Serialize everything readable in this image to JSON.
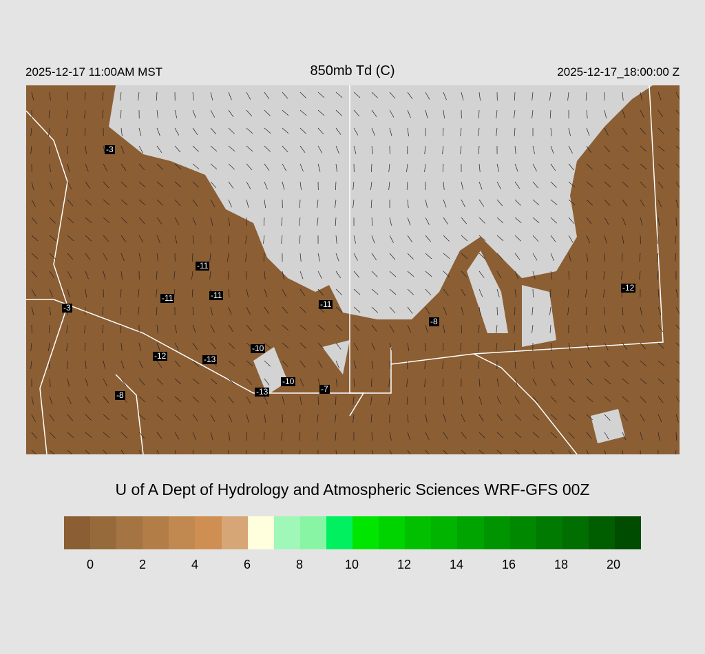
{
  "header": {
    "local_time": "2025-12-17 11:00AM MST",
    "title": "850mb Td (C)",
    "valid_time": "2025-12-17_18:00:00 Z"
  },
  "map": {
    "land_color_dry": "#8B5E34",
    "background_color": "#d3d3d3",
    "boundary_color": "#ffffff",
    "station_values": [
      "-3",
      "-3",
      "-11",
      "-11",
      "-11",
      "-11",
      "-12",
      "-8",
      "-10",
      "-12",
      "-13",
      "-10",
      "-7",
      "-13",
      "-8"
    ]
  },
  "credit": "U of A Dept of Hydrology and Atmospheric Sciences WRF-GFS 00Z",
  "colorbar": {
    "colors": [
      "#8B5E34",
      "#976A3B",
      "#A57443",
      "#B27D47",
      "#C1884F",
      "#CF8F52",
      "#D7A677",
      "#FFFFDD",
      "#A0F8B8",
      "#88F5A5",
      "#00F060",
      "#00E600",
      "#00D400",
      "#00C000",
      "#00B400",
      "#00A400",
      "#009400",
      "#008800",
      "#007A00",
      "#006E00",
      "#005E00",
      "#004C00"
    ],
    "tick_labels": [
      "0",
      "2",
      "4",
      "6",
      "8",
      "10",
      "12",
      "14",
      "16",
      "18",
      "20"
    ]
  }
}
